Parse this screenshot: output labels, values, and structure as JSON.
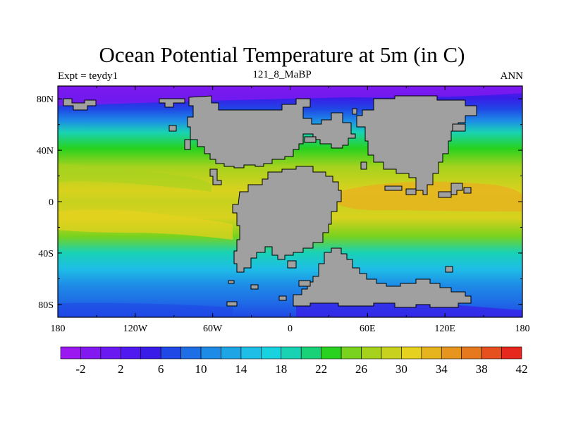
{
  "title": "Ocean Potential Temperature at 5m (in C)",
  "left_label": "Expt = teydy1",
  "center_label": "121_8_MaBP",
  "right_label": "ANN",
  "map": {
    "lat_labels": [
      "80N",
      "40N",
      "0",
      "40S",
      "80S"
    ],
    "lat_values": [
      80,
      40,
      0,
      -40,
      -80
    ],
    "lon_labels": [
      "180",
      "120W",
      "60W",
      "0",
      "60E",
      "120E",
      "180"
    ],
    "lon_values": [
      -180,
      -120,
      -60,
      0,
      60,
      120,
      180
    ],
    "land_color": "#a0a0a0"
  },
  "colorbar": {
    "colors": [
      "#9b19f0",
      "#8119f0",
      "#6a19f0",
      "#5019f0",
      "#3a1ce8",
      "#1f48e6",
      "#1e6ee6",
      "#1e8ce6",
      "#1ea5e6",
      "#1ebee6",
      "#19d2e0",
      "#19d2b4",
      "#19d278",
      "#28d21e",
      "#78d21e",
      "#a6d21e",
      "#c8d21e",
      "#e6d21e",
      "#e6b41e",
      "#e6961e",
      "#e6781e",
      "#e6501e",
      "#e6281e"
    ],
    "labels": [
      "-2",
      "2",
      "6",
      "10",
      "14",
      "18",
      "22",
      "26",
      "30",
      "34",
      "38",
      "42"
    ]
  }
}
